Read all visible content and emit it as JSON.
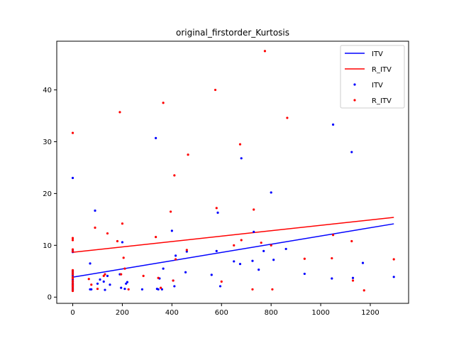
{
  "chart_data": {
    "type": "scatter",
    "title": "original_firstorder_Kurtosis",
    "xlabel": "",
    "ylabel": "",
    "xlim": [
      -64.5,
      1354.5
    ],
    "ylim": [
      -1.2,
      49.4
    ],
    "xticks": [
      0,
      200,
      400,
      600,
      800,
      1000,
      1200
    ],
    "yticks": [
      0,
      10,
      20,
      30,
      40
    ],
    "grid": false,
    "legend_position": "upper-right",
    "legend": [
      {
        "label": "ITV",
        "kind": "line",
        "color": "#0000ff"
      },
      {
        "label": "R_ITV",
        "kind": "line",
        "color": "#ff0000"
      },
      {
        "label": "ITV",
        "kind": "marker",
        "color": "#0000ff"
      },
      {
        "label": "R_ITV",
        "kind": "marker",
        "color": "#ff0000"
      }
    ],
    "series": [
      {
        "name": "ITV",
        "color": "#0000ff",
        "points": [
          [
            0,
            23.0
          ],
          [
            0,
            4.2
          ],
          [
            0,
            3.8
          ],
          [
            0,
            3.4
          ],
          [
            0,
            3.0
          ],
          [
            0,
            2.6
          ],
          [
            0,
            2.2
          ],
          [
            0,
            1.9
          ],
          [
            0,
            1.6
          ],
          [
            0,
            1.4
          ],
          [
            0,
            8.9
          ],
          [
            0,
            8.7
          ],
          [
            0,
            4.6
          ],
          [
            0,
            5.0
          ],
          [
            0,
            2.4
          ],
          [
            70,
            1.5
          ],
          [
            70,
            6.5
          ],
          [
            75,
            1.5
          ],
          [
            90,
            16.7
          ],
          [
            100,
            2.6
          ],
          [
            110,
            3.4
          ],
          [
            125,
            3.0
          ],
          [
            130,
            1.4
          ],
          [
            140,
            4.1
          ],
          [
            150,
            2.4
          ],
          [
            190,
            4.4
          ],
          [
            195,
            1.8
          ],
          [
            200,
            10.6
          ],
          [
            210,
            1.6
          ],
          [
            215,
            2.6
          ],
          [
            220,
            2.9
          ],
          [
            280,
            1.5
          ],
          [
            335,
            30.7
          ],
          [
            340,
            1.6
          ],
          [
            345,
            1.5
          ],
          [
            350,
            3.6
          ],
          [
            360,
            1.5
          ],
          [
            365,
            5.5
          ],
          [
            400,
            12.8
          ],
          [
            405,
            3.2
          ],
          [
            410,
            2.1
          ],
          [
            415,
            8.0
          ],
          [
            455,
            4.8
          ],
          [
            460,
            8.8
          ],
          [
            560,
            4.3
          ],
          [
            580,
            8.9
          ],
          [
            585,
            16.3
          ],
          [
            595,
            2.1
          ],
          [
            650,
            6.9
          ],
          [
            675,
            6.4
          ],
          [
            680,
            26.8
          ],
          [
            725,
            7.0
          ],
          [
            730,
            12.6
          ],
          [
            750,
            5.3
          ],
          [
            770,
            8.9
          ],
          [
            800,
            20.2
          ],
          [
            810,
            7.2
          ],
          [
            860,
            9.3
          ],
          [
            935,
            4.5
          ],
          [
            1045,
            3.6
          ],
          [
            1050,
            33.3
          ],
          [
            1125,
            28.0
          ],
          [
            1130,
            3.7
          ],
          [
            1170,
            6.6
          ],
          [
            1295,
            3.9
          ]
        ]
      },
      {
        "name": "R_ITV",
        "color": "#ff0000",
        "points": [
          [
            0,
            31.7
          ],
          [
            0,
            11.4
          ],
          [
            0,
            11.0
          ],
          [
            0,
            9.2
          ],
          [
            0,
            8.8
          ],
          [
            0,
            5.2
          ],
          [
            0,
            4.8
          ],
          [
            0,
            4.4
          ],
          [
            0,
            3.9
          ],
          [
            0,
            3.6
          ],
          [
            0,
            3.1
          ],
          [
            0,
            2.7
          ],
          [
            0,
            2.3
          ],
          [
            0,
            2.0
          ],
          [
            0,
            1.6
          ],
          [
            0,
            1.2
          ],
          [
            65,
            3.5
          ],
          [
            75,
            2.4
          ],
          [
            90,
            13.4
          ],
          [
            100,
            1.6
          ],
          [
            125,
            4.1
          ],
          [
            130,
            4.4
          ],
          [
            140,
            12.3
          ],
          [
            180,
            10.8
          ],
          [
            190,
            35.7
          ],
          [
            195,
            4.4
          ],
          [
            200,
            14.2
          ],
          [
            205,
            7.6
          ],
          [
            210,
            5.5
          ],
          [
            225,
            1.5
          ],
          [
            285,
            4.1
          ],
          [
            335,
            11.6
          ],
          [
            345,
            3.7
          ],
          [
            355,
            1.8
          ],
          [
            365,
            37.5
          ],
          [
            395,
            16.5
          ],
          [
            405,
            3.2
          ],
          [
            410,
            23.5
          ],
          [
            415,
            7.3
          ],
          [
            460,
            9.1
          ],
          [
            465,
            27.5
          ],
          [
            575,
            40.0
          ],
          [
            580,
            17.2
          ],
          [
            600,
            3.0
          ],
          [
            650,
            10.0
          ],
          [
            675,
            29.5
          ],
          [
            680,
            11.0
          ],
          [
            725,
            1.5
          ],
          [
            730,
            16.9
          ],
          [
            760,
            10.5
          ],
          [
            775,
            47.5
          ],
          [
            800,
            10.0
          ],
          [
            805,
            1.5
          ],
          [
            865,
            34.6
          ],
          [
            935,
            7.4
          ],
          [
            1045,
            7.5
          ],
          [
            1050,
            12.0
          ],
          [
            1125,
            10.8
          ],
          [
            1130,
            3.2
          ],
          [
            1175,
            1.3
          ],
          [
            1295,
            7.3
          ]
        ]
      }
    ],
    "fit_lines": [
      {
        "name": "ITV",
        "color": "#0000ff",
        "x": [
          0,
          1295
        ],
        "y": [
          3.85,
          14.15
        ]
      },
      {
        "name": "R_ITV",
        "color": "#ff0000",
        "x": [
          0,
          1295
        ],
        "y": [
          8.65,
          15.4
        ]
      }
    ]
  }
}
